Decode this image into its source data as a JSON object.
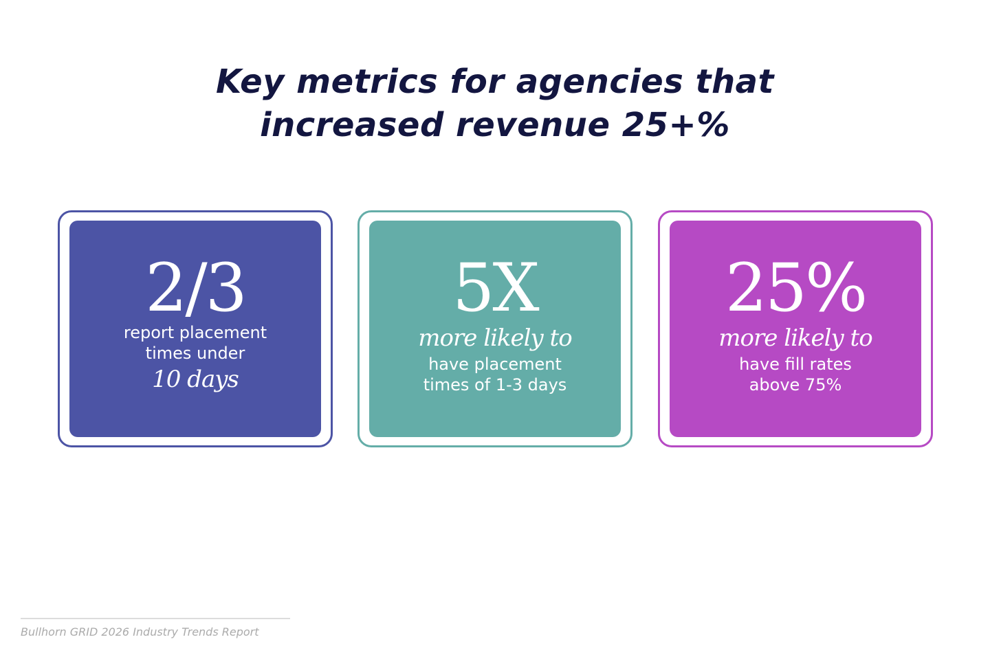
{
  "title_lines": [
    "Key metrics for agencies that",
    "increased revenue 25+%"
  ],
  "cards": [
    {
      "color": "#4c54a5",
      "stat": "2/3",
      "caption_lines": [
        "report placement",
        "times under"
      ],
      "emphasis": "10 days"
    },
    {
      "color": "#64ada8",
      "stat": "5X",
      "emphasis": "more likely to",
      "caption_lines": [
        "have placement",
        "times of 1-3 days"
      ]
    },
    {
      "color": "#b64ac4",
      "stat": "25%",
      "emphasis": "more likely to",
      "caption_lines": [
        "have fill rates",
        "above 75%"
      ]
    }
  ],
  "footer": "Bullhorn GRID 2026 Industry Trends Report"
}
